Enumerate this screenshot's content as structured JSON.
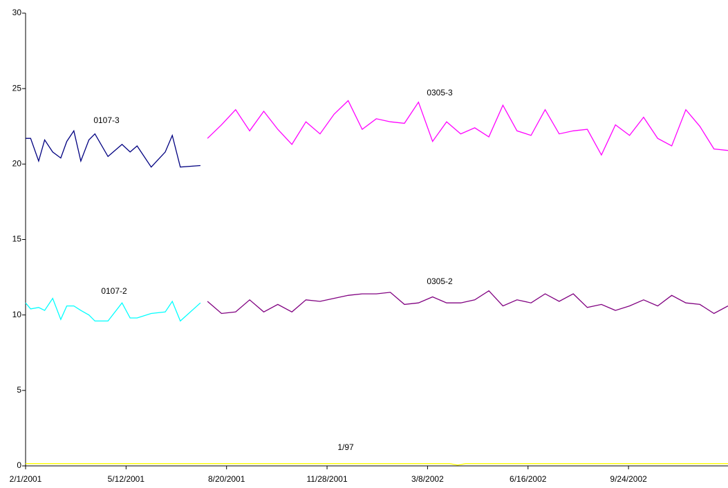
{
  "chart_data": {
    "type": "line",
    "xlim": [
      "2001-02-01",
      "2003-01-01"
    ],
    "xticks": [
      {
        "value": "2001-02-01",
        "label": "2/1/2001"
      },
      {
        "value": "2001-05-12",
        "label": "5/12/2001"
      },
      {
        "value": "2001-08-20",
        "label": "8/20/2001"
      },
      {
        "value": "2001-11-28",
        "label": "11/28/2001"
      },
      {
        "value": "2002-03-08",
        "label": "3/8/2002"
      },
      {
        "value": "2002-06-16",
        "label": "6/16/2002"
      },
      {
        "value": "2002-09-24",
        "label": "9/24/2002"
      }
    ],
    "ylim": [
      0,
      30
    ],
    "yticks": [
      0,
      5,
      10,
      15,
      20,
      25,
      30
    ],
    "grid": false,
    "series": [
      {
        "name": "0107-3",
        "color": "#000080",
        "x": [
          "2001-02-01",
          "2001-02-06",
          "2001-02-14",
          "2001-02-20",
          "2001-02-28",
          "2001-03-08",
          "2001-03-14",
          "2001-03-21",
          "2001-03-28",
          "2001-04-05",
          "2001-04-11",
          "2001-04-24",
          "2001-05-08",
          "2001-05-16",
          "2001-05-23",
          "2001-06-06",
          "2001-06-20",
          "2001-06-27",
          "2001-07-05",
          "2001-07-25"
        ],
        "values": [
          21.7,
          21.7,
          20.2,
          21.6,
          20.8,
          20.4,
          21.5,
          22.2,
          20.2,
          21.6,
          22.0,
          20.5,
          21.3,
          20.8,
          21.2,
          19.8,
          20.8,
          21.9,
          19.8,
          19.9
        ]
      },
      {
        "name": "0107-2",
        "color": "#00ffff",
        "x": [
          "2001-02-01",
          "2001-02-06",
          "2001-02-14",
          "2001-02-20",
          "2001-02-28",
          "2001-03-08",
          "2001-03-14",
          "2001-03-21",
          "2001-03-28",
          "2001-04-05",
          "2001-04-11",
          "2001-04-24",
          "2001-05-08",
          "2001-05-16",
          "2001-05-23",
          "2001-06-06",
          "2001-06-20",
          "2001-06-27",
          "2001-07-05",
          "2001-07-25"
        ],
        "values": [
          10.8,
          10.4,
          10.5,
          10.3,
          11.1,
          9.7,
          10.6,
          10.6,
          10.3,
          10.0,
          9.6,
          9.6,
          10.8,
          9.8,
          9.8,
          10.1,
          10.2,
          10.9,
          9.6,
          10.8
        ]
      },
      {
        "name": "0305-3",
        "color": "#ff00ff",
        "x": [
          "2001-08-01",
          "2001-08-15",
          "2001-08-29",
          "2001-09-12",
          "2001-09-26",
          "2001-10-10",
          "2001-10-24",
          "2001-11-07",
          "2001-11-21",
          "2001-12-05",
          "2001-12-19",
          "2002-01-02",
          "2002-01-16",
          "2002-01-30",
          "2002-02-13",
          "2002-02-27",
          "2002-03-13",
          "2002-03-27",
          "2002-04-10",
          "2002-04-24",
          "2002-05-08",
          "2002-05-22",
          "2002-06-05",
          "2002-06-19",
          "2002-07-03",
          "2002-07-17",
          "2002-07-31",
          "2002-08-14",
          "2002-08-28",
          "2002-09-11",
          "2002-09-25",
          "2002-10-09",
          "2002-10-23",
          "2002-11-06",
          "2002-11-20",
          "2002-12-04",
          "2002-12-18",
          "2003-01-01"
        ],
        "values": [
          21.7,
          22.6,
          23.6,
          22.2,
          23.5,
          22.3,
          21.3,
          22.8,
          22.0,
          23.3,
          24.2,
          22.3,
          23.0,
          22.8,
          22.7,
          24.1,
          21.5,
          22.8,
          22.0,
          22.4,
          21.8,
          23.9,
          22.2,
          21.9,
          23.6,
          22.0,
          22.2,
          22.3,
          20.6,
          22.6,
          21.9,
          23.1,
          21.7,
          21.2,
          23.6,
          22.5,
          21.0,
          20.9
        ]
      },
      {
        "name": "0305-2",
        "color": "#800080",
        "x": [
          "2001-08-01",
          "2001-08-15",
          "2001-08-29",
          "2001-09-12",
          "2001-09-26",
          "2001-10-10",
          "2001-10-24",
          "2001-11-07",
          "2001-11-21",
          "2001-12-05",
          "2001-12-19",
          "2002-01-02",
          "2002-01-16",
          "2002-01-30",
          "2002-02-13",
          "2002-02-27",
          "2002-03-13",
          "2002-03-27",
          "2002-04-10",
          "2002-04-24",
          "2002-05-08",
          "2002-05-22",
          "2002-06-05",
          "2002-06-19",
          "2002-07-03",
          "2002-07-17",
          "2002-07-31",
          "2002-08-14",
          "2002-08-28",
          "2002-09-11",
          "2002-09-25",
          "2002-10-09",
          "2002-10-23",
          "2002-11-06",
          "2002-11-20",
          "2002-12-04",
          "2002-12-18",
          "2003-01-01"
        ],
        "values": [
          10.9,
          10.1,
          10.2,
          11.0,
          10.2,
          10.7,
          10.2,
          11.0,
          10.9,
          11.1,
          11.3,
          11.4,
          11.4,
          11.5,
          10.7,
          10.8,
          11.2,
          10.8,
          10.8,
          11.0,
          11.6,
          10.6,
          11.0,
          10.8,
          11.4,
          10.9,
          11.4,
          10.5,
          10.7,
          10.3,
          10.6,
          11.0,
          10.6,
          11.3,
          10.8,
          10.7,
          10.1,
          10.6
        ]
      },
      {
        "name": "1/97",
        "color": "#ffff00",
        "x": [
          "2001-02-01",
          "2002-03-30",
          "2002-04-07",
          "2002-04-15",
          "2003-01-01"
        ],
        "values": [
          0.15,
          0.15,
          0.05,
          0.15,
          0.15
        ]
      }
    ]
  }
}
